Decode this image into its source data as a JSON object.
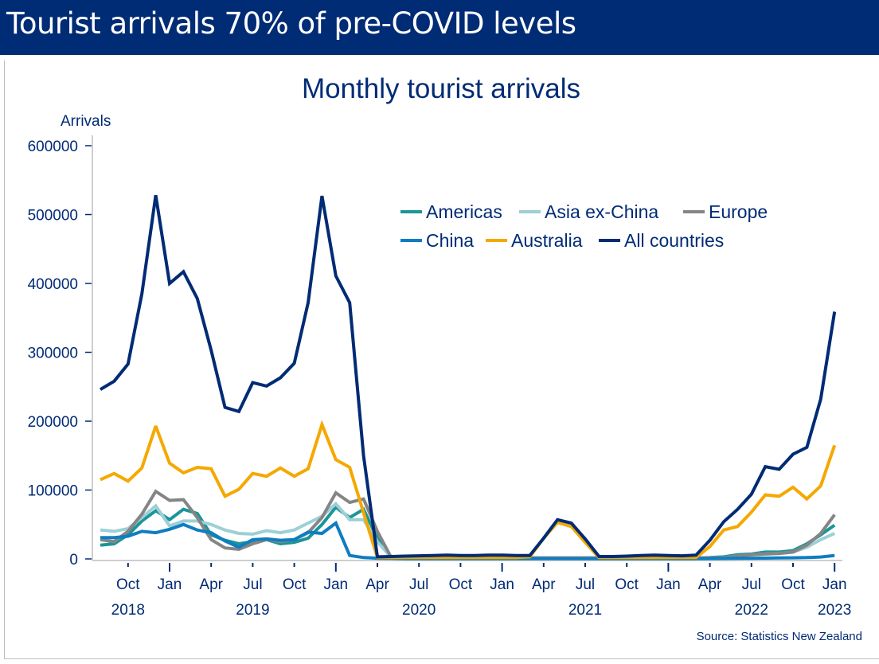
{
  "banner": {
    "title": "Tourist arrivals 70% of pre-COVID levels"
  },
  "source_note": "Source: Statistics New Zealand",
  "chart_data": {
    "type": "line",
    "title": "Monthly tourist arrivals",
    "ylabel": "Arrivals",
    "xlabel": "",
    "ylim": [
      0,
      600000
    ],
    "yticks": [
      0,
      100000,
      200000,
      300000,
      400000,
      500000,
      600000
    ],
    "ytick_labels": [
      "0",
      "100000",
      "200000",
      "300000",
      "400000",
      "500000",
      "600000"
    ],
    "grid": false,
    "legend_position": "top-right",
    "x_start": "2018-08",
    "x_end": "2022-12",
    "x_frequency": "monthly",
    "xtick_labels": [
      {
        "month_index": 2,
        "label": "Oct",
        "year": "2018"
      },
      {
        "month_index": 5,
        "label": "Jan",
        "year": ""
      },
      {
        "month_index": 8,
        "label": "Apr",
        "year": ""
      },
      {
        "month_index": 11,
        "label": "Jul",
        "year": "2019"
      },
      {
        "month_index": 14,
        "label": "Oct",
        "year": ""
      },
      {
        "month_index": 17,
        "label": "Jan",
        "year": ""
      },
      {
        "month_index": 20,
        "label": "Apr",
        "year": ""
      },
      {
        "month_index": 23,
        "label": "Jul",
        "year": "2020"
      },
      {
        "month_index": 26,
        "label": "Oct",
        "year": ""
      },
      {
        "month_index": 29,
        "label": "Jan",
        "year": ""
      },
      {
        "month_index": 32,
        "label": "Apr",
        "year": ""
      },
      {
        "month_index": 35,
        "label": "Jul",
        "year": "2021"
      },
      {
        "month_index": 38,
        "label": "Oct",
        "year": ""
      },
      {
        "month_index": 41,
        "label": "Jan",
        "year": ""
      },
      {
        "month_index": 44,
        "label": "Apr",
        "year": ""
      },
      {
        "month_index": 47,
        "label": "Jul",
        "year": "2022"
      },
      {
        "month_index": 50,
        "label": "Oct",
        "year": ""
      },
      {
        "month_index": 53,
        "label": "Jan",
        "year": "2023"
      }
    ],
    "series": [
      {
        "name": "Americas",
        "color": "#1A9599",
        "values": [
          20000,
          22000,
          35000,
          55000,
          70000,
          57000,
          72000,
          66000,
          35000,
          27000,
          22000,
          25000,
          28000,
          22000,
          24000,
          30000,
          50000,
          75000,
          60000,
          72000,
          30000,
          1500,
          1500,
          1500,
          1500,
          1500,
          1500,
          1500,
          1500,
          1500,
          1500,
          1500,
          1500,
          1500,
          1500,
          1500,
          1500,
          1500,
          1500,
          1500,
          1500,
          1500,
          1500,
          1500,
          2000,
          3000,
          6000,
          7000,
          10000,
          10000,
          12000,
          22000,
          35000,
          49000
        ]
      },
      {
        "name": "Asia ex-China",
        "color": "#9DCFD6",
        "values": [
          42000,
          40000,
          44000,
          60000,
          77000,
          48000,
          55000,
          55000,
          50000,
          42000,
          37000,
          36000,
          41000,
          38000,
          42000,
          52000,
          62000,
          80000,
          57000,
          57000,
          25000,
          2000,
          1500,
          1500,
          1500,
          1500,
          1500,
          1500,
          1500,
          1500,
          1500,
          1500,
          1500,
          1500,
          1500,
          1500,
          1500,
          1500,
          1500,
          1500,
          1500,
          1500,
          1500,
          1500,
          1500,
          2000,
          4000,
          6000,
          7000,
          8000,
          10000,
          17000,
          28000,
          37000
        ]
      },
      {
        "name": "Europe",
        "color": "#858585",
        "values": [
          28000,
          25000,
          40000,
          65000,
          98000,
          85000,
          86000,
          60000,
          28000,
          16000,
          14000,
          22000,
          28000,
          25000,
          28000,
          38000,
          60000,
          96000,
          82000,
          87000,
          40000,
          2000,
          1500,
          1500,
          1500,
          1500,
          1500,
          1500,
          1500,
          1500,
          1500,
          1500,
          1500,
          1500,
          1500,
          1500,
          1500,
          1500,
          1500,
          1500,
          1500,
          1500,
          1500,
          1500,
          1500,
          2000,
          4000,
          6000,
          7000,
          8000,
          10000,
          20000,
          37000,
          64000
        ]
      },
      {
        "name": "China",
        "color": "#0E7DC2",
        "values": [
          31000,
          31000,
          33000,
          40000,
          38000,
          43000,
          50000,
          42000,
          38000,
          26000,
          17000,
          28000,
          29000,
          27000,
          28000,
          39000,
          37000,
          52000,
          5000,
          2000,
          1000,
          800,
          500,
          500,
          500,
          500,
          500,
          500,
          500,
          500,
          500,
          500,
          500,
          500,
          500,
          500,
          500,
          500,
          500,
          500,
          500,
          500,
          500,
          500,
          600,
          700,
          900,
          1000,
          1200,
          1400,
          1600,
          2000,
          2800,
          5000
        ]
      },
      {
        "name": "Australia",
        "color": "#F5A800",
        "values": [
          115000,
          124000,
          113000,
          132000,
          193000,
          139000,
          125000,
          133000,
          131000,
          91000,
          101000,
          124000,
          120000,
          132000,
          120000,
          131000,
          195000,
          144000,
          133000,
          67000,
          2000,
          2000,
          2000,
          2000,
          2000,
          2000,
          2000,
          2000,
          2000,
          2000,
          2000,
          3000,
          30000,
          53000,
          47000,
          24000,
          2000,
          2000,
          2000,
          2000,
          2000,
          2000,
          2000,
          2000,
          18000,
          42000,
          47000,
          68000,
          93000,
          91000,
          104000,
          87000,
          106000,
          165000
        ]
      },
      {
        "name": "All countries",
        "color": "#002B75",
        "values": [
          246000,
          258000,
          283000,
          385000,
          528000,
          400000,
          417000,
          378000,
          303000,
          220000,
          214000,
          256000,
          251000,
          263000,
          284000,
          372000,
          527000,
          411000,
          372000,
          150000,
          3000,
          3500,
          4000,
          4500,
          5000,
          5500,
          5000,
          5000,
          5500,
          5500,
          5000,
          5000,
          30000,
          57000,
          52000,
          29000,
          3500,
          3500,
          4000,
          5000,
          5500,
          5000,
          4500,
          5500,
          27000,
          54000,
          72000,
          94000,
          134000,
          130000,
          152000,
          162000,
          232000,
          359000
        ]
      }
    ]
  }
}
